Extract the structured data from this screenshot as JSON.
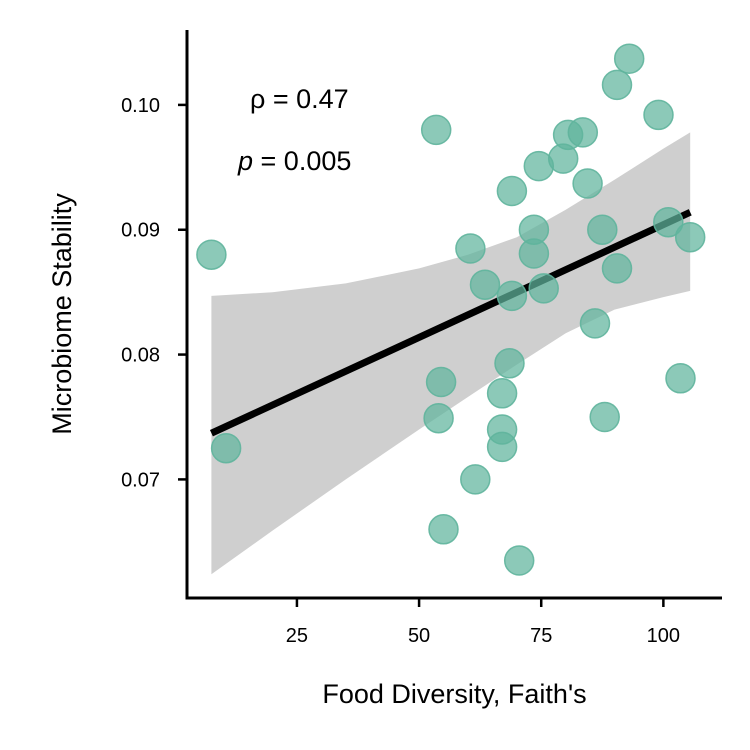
{
  "chart_data": {
    "type": "scatter",
    "xlabel": "Food Diversity, Faith's",
    "ylabel": "Microbiome Stability",
    "xlim": [
      2.5,
      112
    ],
    "ylim": [
      0.0605,
      0.106
    ],
    "xticks": [
      25,
      50,
      75,
      100
    ],
    "xtick_labels": [
      "25",
      "50",
      "75",
      "100"
    ],
    "yticks": [
      0.07,
      0.08,
      0.09,
      0.1
    ],
    "ytick_labels": [
      "0.07",
      "0.08",
      "0.09",
      "0.10"
    ],
    "grid": false,
    "annotations": {
      "rho_symbol": "ρ",
      "rho_value": " = 0.47",
      "p_symbol": "p",
      "p_value": " = 0.005"
    },
    "colors": {
      "points": "#5fb49c",
      "fit_line": "#000000",
      "confidence_band": "#cfcfcf"
    },
    "points": [
      {
        "x": 7.5,
        "y": 0.088
      },
      {
        "x": 10.5,
        "y": 0.0725
      },
      {
        "x": 53.5,
        "y": 0.098
      },
      {
        "x": 54.5,
        "y": 0.0778
      },
      {
        "x": 54.0,
        "y": 0.0749
      },
      {
        "x": 55.0,
        "y": 0.066
      },
      {
        "x": 60.5,
        "y": 0.0885
      },
      {
        "x": 61.5,
        "y": 0.07
      },
      {
        "x": 63.5,
        "y": 0.0856
      },
      {
        "x": 67.0,
        "y": 0.0769
      },
      {
        "x": 67.0,
        "y": 0.074
      },
      {
        "x": 67.0,
        "y": 0.0726
      },
      {
        "x": 68.5,
        "y": 0.0793
      },
      {
        "x": 69.0,
        "y": 0.0931
      },
      {
        "x": 69.0,
        "y": 0.0847
      },
      {
        "x": 70.5,
        "y": 0.0635
      },
      {
        "x": 73.5,
        "y": 0.09
      },
      {
        "x": 73.5,
        "y": 0.0881
      },
      {
        "x": 74.5,
        "y": 0.0951
      },
      {
        "x": 75.5,
        "y": 0.0853
      },
      {
        "x": 79.5,
        "y": 0.0957
      },
      {
        "x": 80.5,
        "y": 0.0976
      },
      {
        "x": 83.5,
        "y": 0.0978
      },
      {
        "x": 84.5,
        "y": 0.0937
      },
      {
        "x": 86.0,
        "y": 0.0825
      },
      {
        "x": 87.5,
        "y": 0.09
      },
      {
        "x": 88.0,
        "y": 0.075
      },
      {
        "x": 90.5,
        "y": 0.1016
      },
      {
        "x": 90.5,
        "y": 0.0869
      },
      {
        "x": 93.0,
        "y": 0.1037
      },
      {
        "x": 99.0,
        "y": 0.0992
      },
      {
        "x": 101.0,
        "y": 0.0906
      },
      {
        "x": 103.5,
        "y": 0.0781
      },
      {
        "x": 105.5,
        "y": 0.0894
      }
    ],
    "fit_line": {
      "x": [
        7.5,
        105.5
      ],
      "y": [
        0.0737,
        0.0914
      ]
    },
    "confidence_band": {
      "x": [
        7.5,
        20,
        35,
        50,
        60,
        70,
        80,
        90,
        100,
        105.5
      ],
      "upper": [
        0.0847,
        0.085,
        0.0857,
        0.0869,
        0.088,
        0.0894,
        0.0916,
        0.094,
        0.0965,
        0.0978
      ],
      "lower": [
        0.0624,
        0.0659,
        0.07,
        0.074,
        0.0766,
        0.0792,
        0.0817,
        0.0836,
        0.0846,
        0.0851
      ]
    }
  }
}
